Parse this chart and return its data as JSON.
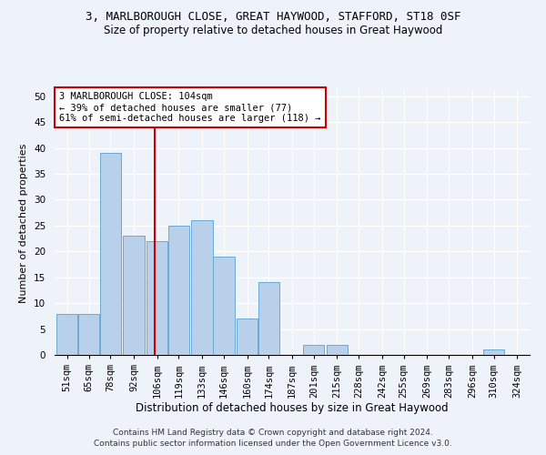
{
  "title": "3, MARLBOROUGH CLOSE, GREAT HAYWOOD, STAFFORD, ST18 0SF",
  "subtitle": "Size of property relative to detached houses in Great Haywood",
  "xlabel": "Distribution of detached houses by size in Great Haywood",
  "ylabel": "Number of detached properties",
  "footer1": "Contains HM Land Registry data © Crown copyright and database right 2024.",
  "footer2": "Contains public sector information licensed under the Open Government Licence v3.0.",
  "annotation_line1": "3 MARLBOROUGH CLOSE: 104sqm",
  "annotation_line2": "← 39% of detached houses are smaller (77)",
  "annotation_line3": "61% of semi-detached houses are larger (118) →",
  "property_size": 104,
  "bar_color": "#b8d0ea",
  "bar_edge_color": "#6aaad4",
  "ref_line_color": "#cc0000",
  "annotation_box_edge_color": "#cc0000",
  "background_color": "#eef2f9",
  "grid_color": "#ffffff",
  "categories": [
    "51sqm",
    "65sqm",
    "78sqm",
    "92sqm",
    "106sqm",
    "119sqm",
    "133sqm",
    "146sqm",
    "160sqm",
    "174sqm",
    "187sqm",
    "201sqm",
    "215sqm",
    "228sqm",
    "242sqm",
    "255sqm",
    "269sqm",
    "283sqm",
    "296sqm",
    "310sqm",
    "324sqm"
  ],
  "bin_width": 13,
  "bin_starts": [
    45,
    58,
    71,
    85,
    99,
    112,
    126,
    139,
    153,
    166,
    180,
    193,
    207,
    220,
    234,
    247,
    261,
    274,
    288,
    301,
    315
  ],
  "values": [
    8,
    8,
    39,
    23,
    22,
    25,
    26,
    19,
    7,
    14,
    0,
    2,
    2,
    0,
    0,
    0,
    0,
    0,
    0,
    1,
    0
  ],
  "ylim": [
    0,
    51
  ],
  "yticks": [
    0,
    5,
    10,
    15,
    20,
    25,
    30,
    35,
    40,
    45,
    50
  ],
  "title_fontsize": 9,
  "subtitle_fontsize": 8.5,
  "ylabel_fontsize": 8,
  "xlabel_fontsize": 8.5,
  "tick_fontsize": 7.5,
  "footer_fontsize": 6.5
}
